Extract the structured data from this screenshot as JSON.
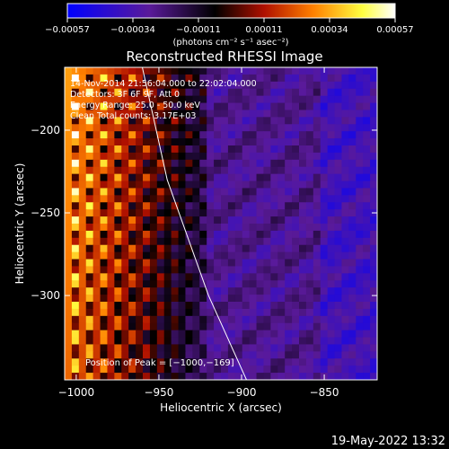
{
  "chart_data": {
    "type": "heatmap",
    "title": "Reconstructed RHESSI Image",
    "xlabel": "Heliocentric X (arcsec)",
    "ylabel": "Heliocentric Y (arcsec)",
    "xlim": [
      -1007,
      -818
    ],
    "ylim": [
      -351,
      -162
    ],
    "x_ticks": [
      {
        "value": -1000,
        "label": "−1000"
      },
      {
        "value": -950,
        "label": "−950"
      },
      {
        "value": -900,
        "label": "−900"
      },
      {
        "value": -850,
        "label": "−850"
      }
    ],
    "y_ticks": [
      {
        "value": -200,
        "label": "−200"
      },
      {
        "value": -250,
        "label": "−250"
      },
      {
        "value": -300,
        "label": "−300"
      }
    ],
    "colorbar": {
      "range": [
        -0.00057,
        0.00057
      ],
      "tick_labels": [
        "−0.00057",
        "−0.00034",
        "−0.00011",
        "0.00011",
        "0.00034",
        "0.00057"
      ],
      "unit_label": "(photons cm⁻² s⁻¹ asec⁻²)",
      "colors": [
        "#0000ff",
        "#5a1a9a",
        "#000000",
        "#b01000",
        "#ff8000",
        "#ffff40",
        "#ffffff"
      ]
    },
    "annotations": [
      "14-Nov-2014 21:56:04.000 to 22:02:04.000",
      "Detectors: 3F 6F 9F, Att 0",
      "Energy Range: 25.0 - 50.0 keV",
      "Clean    Total counts: 3.17E+03"
    ],
    "peak_label": "Position of Peak = [−1000,−169]",
    "limb_curve": [
      [
        -960,
        -162
      ],
      [
        -945,
        -230
      ],
      [
        -920,
        -300
      ],
      [
        -897,
        -351
      ]
    ],
    "grid": false
  },
  "footer": {
    "timestamp": "19-May-2022 13:32"
  }
}
